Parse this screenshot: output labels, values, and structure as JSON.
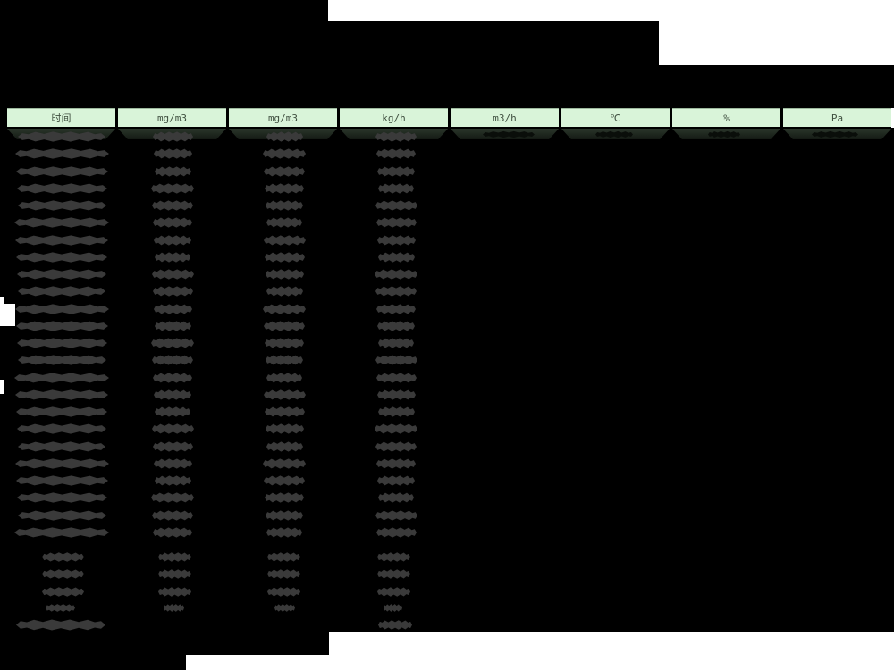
{
  "table": {
    "headers": [
      {
        "label": "时间"
      },
      {
        "label": "mg/m3"
      },
      {
        "label": "mg/m3"
      },
      {
        "label": "kg/h"
      },
      {
        "label": "m3/h"
      },
      {
        "label": "℃"
      },
      {
        "label": "%"
      },
      {
        "label": "Pa"
      }
    ],
    "redacted": true,
    "main_row_count": 24,
    "summary_row_count": 4,
    "footer_row_count": 1
  },
  "colors": {
    "canvas": "#000000",
    "page": "#ffffff",
    "header_bg": "#d9f4d9",
    "header_text": "#3f4f3f",
    "strip_top": "#2b362b",
    "strip_bottom": "#141a14",
    "blob": "#3a3a3a",
    "strip_blob": "#0a0e0a"
  }
}
